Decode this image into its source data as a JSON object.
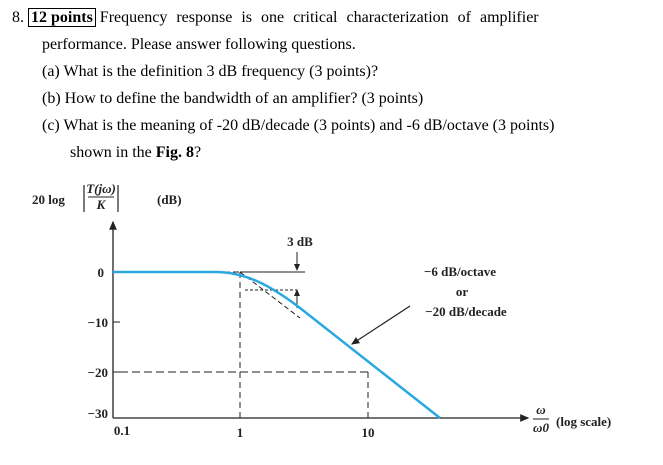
{
  "question": {
    "number": "8.",
    "points": "12 points",
    "intro_line1": "Frequency response is one critical characterization of amplifier",
    "intro_line2": "performance. Please answer following questions.",
    "parts": [
      "(a) What is the definition 3 dB frequency (3 points)?",
      "(b) How to define the bandwidth of an amplifier? (3 points)",
      "(c) What is the meaning of -20 dB/decade (3 points) and -6 dB/octave (3 points)"
    ],
    "part_c_cont": "shown in the ",
    "fig_ref": "Fig. 8",
    "part_c_end": "?"
  },
  "figure": {
    "y_label_prefix": "20 log",
    "y_label_num": "T(jω)",
    "y_label_den": "K",
    "y_unit": "(dB)",
    "y_ticks": [
      "0",
      "−10",
      "−20",
      "−30"
    ],
    "x_ticks": [
      "0.1",
      "1",
      "10"
    ],
    "db_label": "3 dB",
    "slope_octave": "−6 dB/octave",
    "slope_or": "or",
    "slope_decade": "−20 dB/decade",
    "x_label_num": "ω",
    "x_label_den": "ω0",
    "x_scale": "(log scale)"
  }
}
